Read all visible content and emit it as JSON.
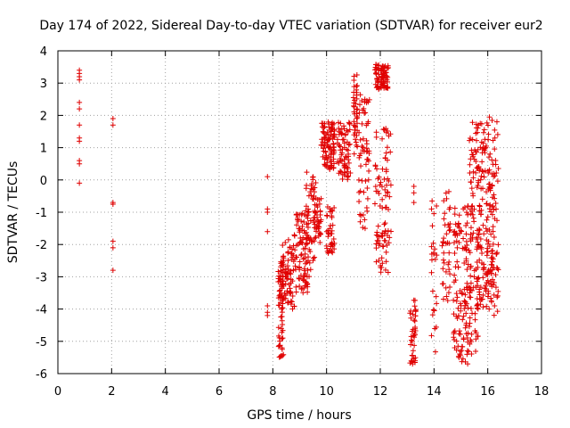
{
  "chart_data": {
    "type": "scatter",
    "title": "Day 174 of 2022, Sidereal Day-to-day VTEC variation (SDTVAR) for receiver eur2",
    "xlabel": "GPS time / hours",
    "ylabel": "SDTVAR / TECUs",
    "xlim": [
      0,
      18
    ],
    "ylim": [
      -6,
      4
    ],
    "xticks": [
      "0",
      "2",
      "4",
      "6",
      "8",
      "10",
      "12",
      "14",
      "16",
      "18"
    ],
    "yticks": [
      "-6",
      "-5",
      "-4",
      "-3",
      "-2",
      "-1",
      "0",
      "1",
      "2",
      "3",
      "4"
    ],
    "grid": true,
    "marker": "+",
    "color": "#e00000",
    "series": [
      {
        "name": "SDTVAR",
        "clusters": [
          {
            "x": 0.8,
            "values": [
              3.4,
              3.3,
              3.2,
              3.1,
              2.4,
              2.2,
              1.7,
              1.3,
              1.2,
              0.6,
              0.5,
              -0.1
            ]
          },
          {
            "x": 2.05,
            "values": [
              1.9,
              1.7,
              -0.7,
              -0.75,
              -1.9,
              -2.1,
              -2.8
            ]
          },
          {
            "x": 7.8,
            "values": [
              0.1,
              -0.9,
              -1.0,
              -1.6,
              -3.9,
              -4.1,
              -4.2
            ]
          },
          {
            "x0": 8.2,
            "x1": 8.4,
            "y0": -5.5,
            "y1": -2.5,
            "n": 60
          },
          {
            "x0": 8.3,
            "x1": 8.8,
            "y0": -4.0,
            "y1": -1.8,
            "n": 80
          },
          {
            "x0": 8.8,
            "x1": 9.3,
            "y0": -3.5,
            "y1": -1.0,
            "n": 80
          },
          {
            "x0": 9.2,
            "x1": 9.6,
            "y0": -3.0,
            "y1": 0.3,
            "n": 60
          },
          {
            "x0": 9.5,
            "x1": 9.8,
            "y0": -2.0,
            "y1": -0.5,
            "n": 40
          },
          {
            "x0": 9.8,
            "x1": 10.3,
            "y0": 0.3,
            "y1": 1.8,
            "n": 100
          },
          {
            "x0": 10.0,
            "x1": 10.3,
            "y0": -2.3,
            "y1": -0.8,
            "n": 40
          },
          {
            "x0": 10.4,
            "x1": 10.9,
            "y0": 0.0,
            "y1": 1.8,
            "n": 70
          },
          {
            "x0": 11.0,
            "x1": 11.15,
            "y0": 0.8,
            "y1": 3.4,
            "n": 40
          },
          {
            "x0": 11.2,
            "x1": 11.6,
            "y0": -1.5,
            "y1": 2.8,
            "n": 60
          },
          {
            "x0": 11.8,
            "x1": 12.3,
            "y0": 2.8,
            "y1": 3.6,
            "n": 80
          },
          {
            "x0": 11.8,
            "x1": 12.4,
            "y0": -2.9,
            "y1": 1.6,
            "n": 90
          },
          {
            "x0": 13.1,
            "x1": 13.35,
            "y0": -5.7,
            "y1": -3.6,
            "n": 40
          },
          {
            "x": 13.25,
            "values": [
              -0.2,
              -0.4,
              -0.7
            ]
          },
          {
            "x0": 13.9,
            "x1": 14.1,
            "y0": -5.8,
            "y1": -0.5,
            "n": 25
          },
          {
            "x0": 14.3,
            "x1": 14.6,
            "y0": -3.8,
            "y1": -0.3,
            "n": 40
          },
          {
            "x0": 14.7,
            "x1": 15.3,
            "y0": -5.7,
            "y1": -0.8,
            "n": 120
          },
          {
            "x0": 15.3,
            "x1": 15.7,
            "y0": -5.5,
            "y1": 1.8,
            "n": 110
          },
          {
            "x0": 15.6,
            "x1": 16.2,
            "y0": -4.0,
            "y1": 1.8,
            "n": 120
          },
          {
            "x0": 16.0,
            "x1": 16.4,
            "y0": -4.2,
            "y1": 2.0,
            "n": 80
          }
        ]
      }
    ]
  }
}
